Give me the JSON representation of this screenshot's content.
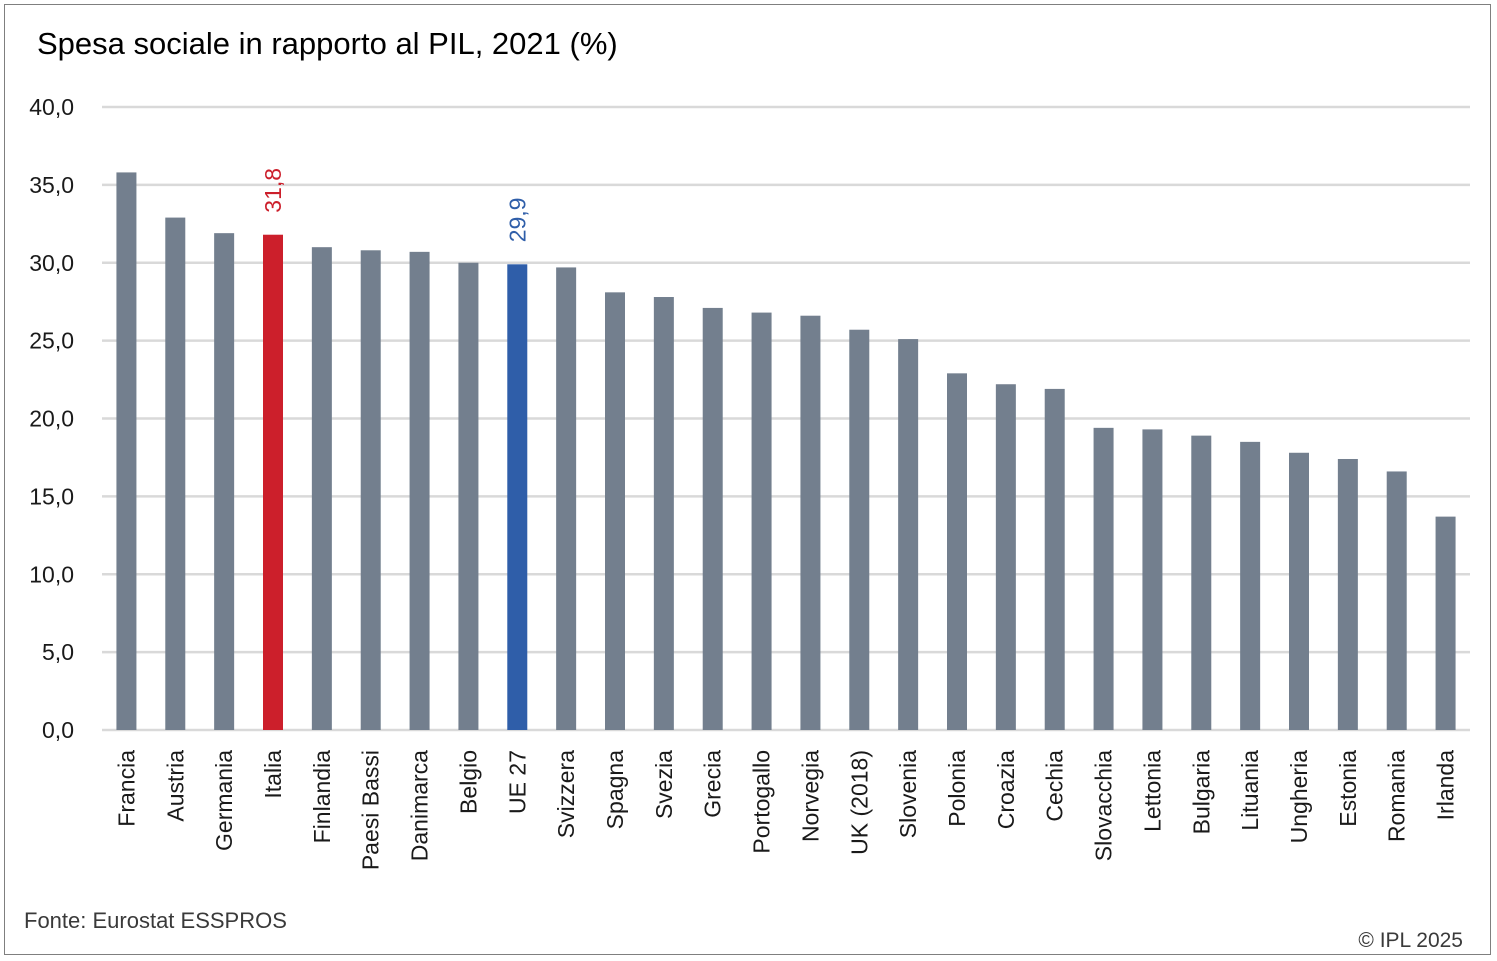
{
  "chart_data": {
    "type": "bar",
    "title": "Spesa sociale in rapporto al PIL, 2021 (%)",
    "categories": [
      "Francia",
      "Austria",
      "Germania",
      "Italia",
      "Finlandia",
      "Paesi Bassi",
      "Danimarca",
      "Belgio",
      "UE 27",
      "Svizzera",
      "Spagna",
      "Svezia",
      "Grecia",
      "Portogallo",
      "Norvegia",
      "UK (2018)",
      "Slovenia",
      "Polonia",
      "Croazia",
      "Cechia",
      "Slovacchia",
      "Lettonia",
      "Bulgaria",
      "Lituania",
      "Ungheria",
      "Estonia",
      "Romania",
      "Irlanda"
    ],
    "values": [
      35.8,
      32.9,
      31.9,
      31.8,
      31.0,
      30.8,
      30.7,
      30.0,
      29.9,
      29.7,
      28.1,
      27.8,
      27.1,
      26.8,
      26.6,
      25.7,
      25.1,
      22.9,
      22.2,
      21.9,
      19.4,
      19.3,
      18.9,
      18.5,
      17.8,
      17.4,
      16.6,
      13.7
    ],
    "ylim": [
      0,
      40
    ],
    "yticks": [
      "0,0",
      "5,0",
      "10,0",
      "15,0",
      "20,0",
      "25,0",
      "30,0",
      "35,0",
      "40,0"
    ],
    "grid": true,
    "colors": {
      "default": "#737f8e",
      "highlight_italia": "#cc1f2b",
      "highlight_ue27": "#2f5ea9",
      "grid": "#d9d9d9"
    },
    "highlights": [
      {
        "category": "Italia",
        "color": "#cc1f2b",
        "label": "31,8"
      },
      {
        "category": "UE 27",
        "color": "#2f5ea9",
        "label": "29,9"
      }
    ]
  },
  "footer": {
    "source": "Fonte: Eurostat ESSPROS",
    "copyright": "© IPL 2025"
  }
}
